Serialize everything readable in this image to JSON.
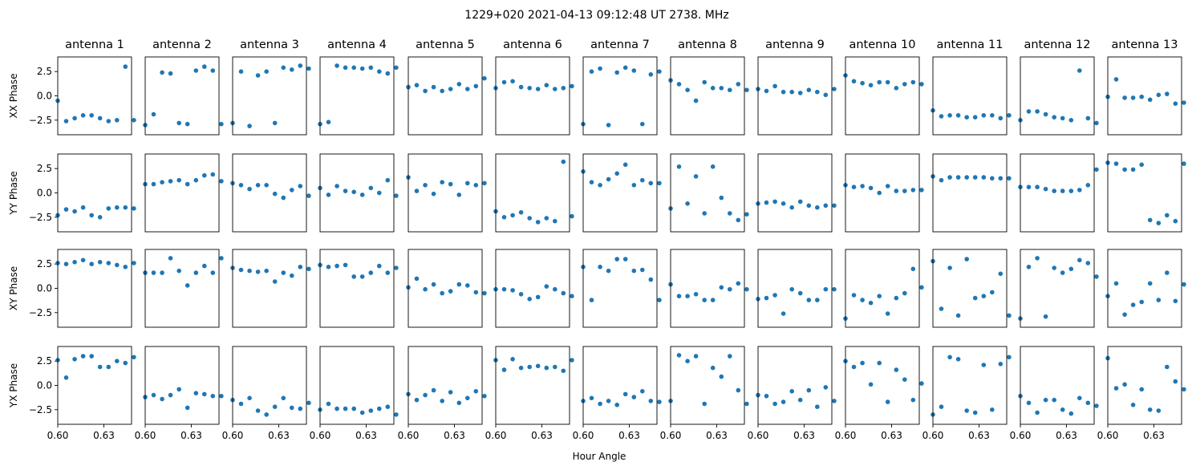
{
  "chart_data": {
    "type": "scatter",
    "title": "1229+020  2021-04-13 09:12:48 UT  2738. MHz",
    "xlabel": "Hour Angle",
    "xlim": [
      0.6,
      0.648
    ],
    "ylim": [
      -4,
      4
    ],
    "xticks": [
      0.6,
      0.63
    ],
    "xtick_labels": [
      "0.60",
      "0.63"
    ],
    "yticks": [
      -2.5,
      0.0,
      2.5
    ],
    "ytick_labels": [
      "−2.5",
      "0.0",
      "2.5"
    ],
    "marker_color": "#1f77b4",
    "x": [
      0.6,
      0.6055,
      0.611,
      0.6165,
      0.622,
      0.6275,
      0.633,
      0.6385,
      0.644,
      0.6495
    ],
    "rows": [
      "XX Phase",
      "YY Phase",
      "XY Phase",
      "YX Phase"
    ],
    "columns": [
      "antenna 1",
      "antenna 2",
      "antenna 3",
      "antenna 4",
      "antenna 5",
      "antenna 6",
      "antenna 7",
      "antenna 8",
      "antenna 9",
      "antenna 10",
      "antenna 11",
      "antenna 12",
      "antenna 13"
    ],
    "panels": [
      [
        [
          -0.5,
          -2.6,
          -2.3,
          -2.0,
          -2.0,
          -2.3,
          -2.6,
          -2.5,
          3.0,
          -2.5
        ],
        [
          -3.0,
          -1.9,
          2.4,
          2.3,
          -2.8,
          -2.9,
          2.6,
          3.0,
          2.6,
          -2.9
        ],
        [
          -2.8,
          2.5,
          -3.1,
          2.1,
          2.5,
          -2.8,
          2.9,
          2.7,
          3.1,
          2.8
        ],
        [
          -2.9,
          -2.7,
          3.1,
          2.9,
          2.9,
          2.8,
          2.9,
          2.5,
          2.3,
          2.9
        ],
        [
          0.9,
          1.1,
          0.5,
          0.9,
          0.5,
          0.7,
          1.2,
          0.7,
          1.0,
          1.8
        ],
        [
          0.8,
          1.4,
          1.5,
          0.9,
          0.8,
          0.7,
          1.1,
          0.7,
          0.8,
          1.0
        ],
        [
          -2.9,
          2.5,
          2.8,
          -3.0,
          2.4,
          2.9,
          2.6,
          -2.9,
          2.2,
          2.5
        ],
        [
          1.6,
          1.2,
          0.6,
          -0.5,
          1.4,
          0.8,
          0.8,
          0.6,
          1.2,
          0.6
        ],
        [
          0.7,
          0.5,
          1.0,
          0.4,
          0.4,
          0.3,
          0.6,
          0.4,
          0.1,
          0.7
        ],
        [
          2.1,
          1.5,
          1.3,
          1.1,
          1.4,
          1.4,
          0.8,
          1.2,
          1.4,
          1.2
        ],
        [
          -1.5,
          -2.1,
          -2.0,
          -2.0,
          -2.2,
          -2.2,
          -2.0,
          -2.0,
          -2.3,
          -2.0
        ],
        [
          -2.5,
          -1.6,
          -1.6,
          -1.9,
          -2.2,
          -2.3,
          -2.5,
          2.6,
          -2.3,
          -2.8
        ],
        [
          -0.1,
          1.7,
          -0.2,
          -0.2,
          -0.1,
          -0.4,
          0.1,
          0.2,
          -0.8,
          -0.7
        ]
      ],
      [
        [
          -2.3,
          -1.7,
          -1.9,
          -1.5,
          -2.3,
          -2.5,
          -1.6,
          -1.5,
          -1.5,
          -1.6
        ],
        [
          0.9,
          0.9,
          1.1,
          1.2,
          1.3,
          0.9,
          1.3,
          1.8,
          1.9,
          1.2
        ],
        [
          1.0,
          0.8,
          0.4,
          0.8,
          0.8,
          -0.1,
          -0.5,
          0.3,
          0.7,
          -0.3
        ],
        [
          0.5,
          -0.2,
          0.7,
          0.2,
          0.1,
          -0.2,
          0.5,
          0.0,
          1.3,
          -0.3
        ],
        [
          1.6,
          0.2,
          0.8,
          -0.1,
          1.1,
          0.9,
          -0.2,
          1.0,
          0.8,
          1.0
        ],
        [
          -1.9,
          -2.5,
          -2.3,
          -2.0,
          -2.6,
          -3.0,
          -2.6,
          -2.9,
          3.2,
          -2.4
        ],
        [
          2.2,
          1.1,
          0.8,
          1.4,
          2.0,
          2.9,
          0.8,
          1.3,
          1.0,
          1.0
        ],
        [
          -1.6,
          2.7,
          -1.1,
          1.7,
          -2.1,
          2.7,
          -0.5,
          -2.1,
          -2.8,
          -2.2
        ],
        [
          -1.1,
          -1.0,
          -0.9,
          -1.1,
          -1.5,
          -0.9,
          -1.3,
          -1.5,
          -1.3,
          -1.3
        ],
        [
          0.8,
          0.6,
          0.7,
          0.5,
          0.0,
          0.7,
          0.2,
          0.2,
          0.3,
          0.3
        ],
        [
          1.7,
          1.3,
          1.6,
          1.6,
          1.6,
          1.6,
          1.6,
          1.5,
          1.5,
          1.5
        ],
        [
          0.6,
          0.6,
          0.6,
          0.4,
          0.2,
          0.2,
          0.2,
          0.3,
          0.8,
          2.4
        ],
        [
          3.1,
          3.0,
          2.4,
          2.4,
          2.9,
          -2.8,
          -3.1,
          -2.3,
          -2.9,
          3.0
        ]
      ],
      [
        [
          2.6,
          2.5,
          2.7,
          2.9,
          2.5,
          2.7,
          2.6,
          2.4,
          2.2,
          2.6
        ],
        [
          1.6,
          1.6,
          1.6,
          3.1,
          1.8,
          0.3,
          1.6,
          2.3,
          1.6,
          3.1
        ],
        [
          2.1,
          1.9,
          1.8,
          1.7,
          1.8,
          0.7,
          1.6,
          1.3,
          2.2,
          2.0
        ],
        [
          2.4,
          2.2,
          2.3,
          2.4,
          1.2,
          1.2,
          1.6,
          2.3,
          1.6,
          2.1
        ],
        [
          0.1,
          1.0,
          -0.1,
          0.4,
          -0.5,
          -0.3,
          0.4,
          0.3,
          -0.4,
          -0.5
        ],
        [
          -0.1,
          -0.1,
          -0.2,
          -0.6,
          -1.1,
          -0.9,
          0.2,
          -0.1,
          -0.5,
          -0.8
        ],
        [
          2.2,
          -1.2,
          2.2,
          1.8,
          3.0,
          3.0,
          1.8,
          1.9,
          0.9,
          -1.2
        ],
        [
          0.4,
          -0.8,
          -0.8,
          -0.6,
          -1.2,
          -1.2,
          0.1,
          -0.1,
          0.5,
          -0.1
        ],
        [
          -1.1,
          -1.0,
          -0.7,
          -2.6,
          -0.1,
          -0.5,
          -1.2,
          -1.2,
          -0.1,
          -0.1
        ],
        [
          -3.1,
          -0.7,
          -1.2,
          -1.5,
          -0.8,
          -2.6,
          -1.0,
          -0.5,
          2.0,
          0.1
        ],
        [
          2.8,
          -2.1,
          2.1,
          -2.8,
          3.0,
          -1.0,
          -0.8,
          -0.4,
          1.5,
          -2.8
        ],
        [
          -3.1,
          2.2,
          3.1,
          -2.9,
          2.1,
          1.6,
          2.0,
          2.9,
          2.6,
          1.2
        ],
        [
          -0.8,
          0.5,
          -2.7,
          -1.7,
          -1.4,
          0.5,
          -1.2,
          1.6,
          -1.3,
          0.4
        ]
      ],
      [
        [
          2.6,
          0.8,
          2.7,
          3.0,
          3.0,
          1.9,
          1.9,
          2.5,
          2.3,
          2.9
        ],
        [
          -1.2,
          -1.0,
          -1.4,
          -1.0,
          -0.4,
          -2.3,
          -0.8,
          -0.9,
          -1.1,
          -1.1
        ],
        [
          -1.5,
          -1.9,
          -1.3,
          -2.6,
          -3.0,
          -2.2,
          -1.3,
          -2.3,
          -2.4,
          -1.8
        ],
        [
          -2.5,
          -1.9,
          -2.4,
          -2.4,
          -2.4,
          -2.8,
          -2.6,
          -2.4,
          -2.2,
          -3.0
        ],
        [
          -0.9,
          -1.5,
          -1.0,
          -0.5,
          -1.6,
          -0.7,
          -1.8,
          -1.3,
          -0.6,
          -1.1
        ],
        [
          2.6,
          1.6,
          2.7,
          1.8,
          1.9,
          2.0,
          1.8,
          1.9,
          1.5,
          2.6
        ],
        [
          -1.6,
          -1.3,
          -1.9,
          -1.6,
          -2.0,
          -0.9,
          -1.2,
          -0.6,
          -1.6,
          -1.7
        ],
        [
          -1.6,
          3.1,
          2.5,
          3.0,
          -1.9,
          1.8,
          0.9,
          3.0,
          -0.5,
          -1.9
        ],
        [
          -1.0,
          -1.1,
          -1.9,
          -1.7,
          -0.6,
          -1.5,
          -0.5,
          -2.2,
          -0.2,
          -1.6
        ],
        [
          2.5,
          1.9,
          2.3,
          0.1,
          2.3,
          -1.7,
          1.6,
          0.6,
          -1.5,
          0.2
        ],
        [
          -3.0,
          -2.2,
          2.9,
          2.7,
          -2.6,
          -2.8,
          2.1,
          -2.5,
          2.2,
          2.9
        ],
        [
          -1.1,
          -1.8,
          -2.8,
          -1.5,
          -1.5,
          -2.5,
          -2.9,
          -1.3,
          -1.8,
          -2.1
        ],
        [
          2.8,
          -0.3,
          0.1,
          -2.0,
          -0.4,
          -2.5,
          -2.6,
          1.9,
          0.4,
          -0.4
        ]
      ]
    ]
  }
}
